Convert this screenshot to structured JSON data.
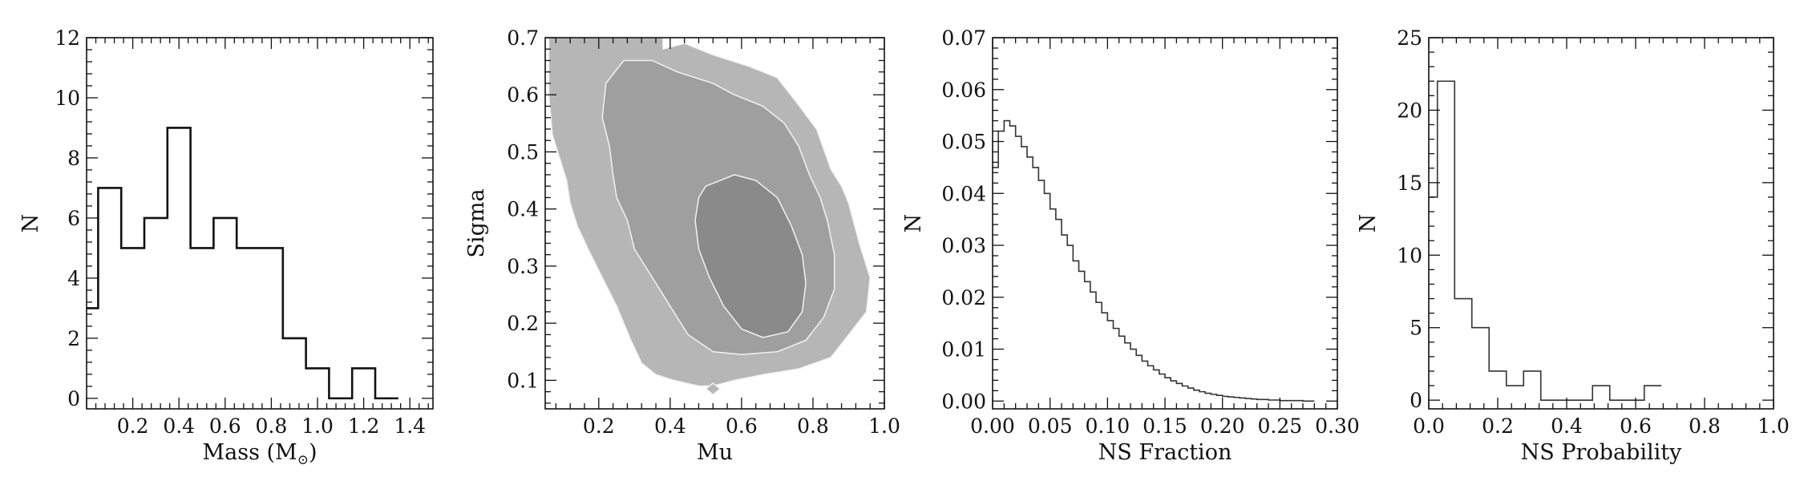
{
  "chart_data": [
    {
      "type": "histogram",
      "xlabel": "Mass (M",
      "xlabel_subscript": "⊙",
      "xlabel_close": ")",
      "ylabel": "N",
      "xlim": [
        0.0,
        1.5
      ],
      "ylim": [
        -0.35,
        12
      ],
      "xticks": [
        "0.2",
        "0.4",
        "0.6",
        "0.8",
        "1.0",
        "1.2",
        "1.4"
      ],
      "xtick_values": [
        0.2,
        0.4,
        0.6,
        0.8,
        1.0,
        1.2,
        1.4
      ],
      "yticks": [
        "0",
        "2",
        "4",
        "6",
        "8",
        "10",
        "12"
      ],
      "ytick_values": [
        0,
        2,
        4,
        6,
        8,
        10,
        12
      ],
      "bin_edges": [
        0.0,
        0.05,
        0.15,
        0.25,
        0.35,
        0.45,
        0.55,
        0.65,
        0.75,
        0.85,
        0.95,
        1.05,
        1.15,
        1.25,
        1.35
      ],
      "counts": [
        3,
        7,
        5,
        6,
        9,
        5,
        6,
        5,
        5,
        2,
        1,
        0,
        1,
        0
      ],
      "stroke": "#111111"
    },
    {
      "type": "contour",
      "xlabel": "Mu",
      "ylabel": "Sigma",
      "xlim": [
        0.05,
        1.0
      ],
      "ylim": [
        0.05,
        0.7
      ],
      "xticks": [
        "0.2",
        "0.4",
        "0.6",
        "0.8",
        "1.0"
      ],
      "xtick_values": [
        0.2,
        0.4,
        0.6,
        0.8,
        1.0
      ],
      "yticks": [
        "0.1",
        "0.2",
        "0.3",
        "0.4",
        "0.5",
        "0.6",
        "0.7"
      ],
      "ytick_values": [
        0.1,
        0.2,
        0.3,
        0.4,
        0.5,
        0.6,
        0.7
      ],
      "levels": [
        {
          "fill": "#b6b6b6",
          "points": [
            [
              0.06,
              0.7
            ],
            [
              0.38,
              0.7
            ],
            [
              0.38,
              0.68
            ],
            [
              0.44,
              0.69
            ],
            [
              0.52,
              0.67
            ],
            [
              0.62,
              0.65
            ],
            [
              0.7,
              0.63
            ],
            [
              0.75,
              0.59
            ],
            [
              0.81,
              0.54
            ],
            [
              0.85,
              0.47
            ],
            [
              0.88,
              0.44
            ],
            [
              0.9,
              0.41
            ],
            [
              0.93,
              0.34
            ],
            [
              0.96,
              0.28
            ],
            [
              0.95,
              0.22
            ],
            [
              0.9,
              0.18
            ],
            [
              0.85,
              0.14
            ],
            [
              0.76,
              0.12
            ],
            [
              0.66,
              0.11
            ],
            [
              0.58,
              0.1
            ],
            [
              0.52,
              0.09
            ],
            [
              0.48,
              0.09
            ],
            [
              0.41,
              0.1
            ],
            [
              0.36,
              0.11
            ],
            [
              0.32,
              0.13
            ],
            [
              0.29,
              0.17
            ],
            [
              0.25,
              0.23
            ],
            [
              0.21,
              0.28
            ],
            [
              0.17,
              0.33
            ],
            [
              0.14,
              0.37
            ],
            [
              0.12,
              0.41
            ],
            [
              0.11,
              0.45
            ],
            [
              0.09,
              0.49
            ],
            [
              0.07,
              0.53
            ],
            [
              0.06,
              0.6
            ]
          ]
        },
        {
          "fill": "#b6b6b6",
          "points": [
            [
              0.5,
              0.085
            ],
            [
              0.52,
              0.075
            ],
            [
              0.54,
              0.085
            ],
            [
              0.52,
              0.095
            ]
          ]
        },
        {
          "fill": "#9f9f9f",
          "points": [
            [
              0.22,
              0.62
            ],
            [
              0.27,
              0.66
            ],
            [
              0.35,
              0.66
            ],
            [
              0.42,
              0.64
            ],
            [
              0.52,
              0.62
            ],
            [
              0.58,
              0.6
            ],
            [
              0.66,
              0.58
            ],
            [
              0.72,
              0.55
            ],
            [
              0.76,
              0.51
            ],
            [
              0.79,
              0.46
            ],
            [
              0.82,
              0.42
            ],
            [
              0.84,
              0.38
            ],
            [
              0.86,
              0.32
            ],
            [
              0.86,
              0.26
            ],
            [
              0.83,
              0.21
            ],
            [
              0.78,
              0.17
            ],
            [
              0.7,
              0.15
            ],
            [
              0.6,
              0.145
            ],
            [
              0.52,
              0.15
            ],
            [
              0.45,
              0.18
            ],
            [
              0.4,
              0.23
            ],
            [
              0.35,
              0.28
            ],
            [
              0.3,
              0.33
            ],
            [
              0.28,
              0.38
            ],
            [
              0.25,
              0.42
            ],
            [
              0.24,
              0.46
            ],
            [
              0.23,
              0.51
            ],
            [
              0.21,
              0.56
            ]
          ]
        },
        {
          "fill": "#8a8a8a",
          "points": [
            [
              0.48,
              0.42
            ],
            [
              0.5,
              0.44
            ],
            [
              0.58,
              0.46
            ],
            [
              0.64,
              0.45
            ],
            [
              0.7,
              0.42
            ],
            [
              0.74,
              0.37
            ],
            [
              0.77,
              0.32
            ],
            [
              0.78,
              0.27
            ],
            [
              0.77,
              0.22
            ],
            [
              0.73,
              0.185
            ],
            [
              0.66,
              0.175
            ],
            [
              0.6,
              0.19
            ],
            [
              0.55,
              0.23
            ],
            [
              0.51,
              0.28
            ],
            [
              0.48,
              0.33
            ],
            [
              0.47,
              0.38
            ]
          ]
        }
      ]
    },
    {
      "type": "histogram",
      "xlabel": "NS Fraction",
      "ylabel": "N",
      "xlim": [
        0.0,
        0.3
      ],
      "ylim": [
        -0.0015,
        0.07
      ],
      "xticks": [
        "0.00",
        "0.05",
        "0.10",
        "0.15",
        "0.20",
        "0.25",
        "0.30"
      ],
      "xtick_values": [
        0.0,
        0.05,
        0.1,
        0.15,
        0.2,
        0.25,
        0.3
      ],
      "yticks": [
        "0.00",
        "0.01",
        "0.02",
        "0.03",
        "0.04",
        "0.05",
        "0.06",
        "0.07"
      ],
      "ytick_values": [
        0.0,
        0.01,
        0.02,
        0.03,
        0.04,
        0.05,
        0.06,
        0.07
      ],
      "bin_edges": [
        0.0,
        0.005,
        0.01,
        0.015,
        0.02,
        0.025,
        0.03,
        0.035,
        0.04,
        0.045,
        0.05,
        0.055,
        0.06,
        0.065,
        0.07,
        0.075,
        0.08,
        0.085,
        0.09,
        0.095,
        0.1,
        0.105,
        0.11,
        0.115,
        0.12,
        0.125,
        0.13,
        0.135,
        0.14,
        0.145,
        0.15,
        0.155,
        0.16,
        0.165,
        0.17,
        0.175,
        0.18,
        0.185,
        0.19,
        0.195,
        0.2,
        0.205,
        0.21,
        0.215,
        0.22,
        0.225,
        0.23,
        0.235,
        0.24,
        0.245,
        0.25,
        0.255,
        0.26,
        0.265,
        0.27,
        0.275,
        0.28
      ],
      "counts": [
        0.045,
        0.052,
        0.054,
        0.053,
        0.051,
        0.049,
        0.047,
        0.045,
        0.0425,
        0.04,
        0.037,
        0.035,
        0.032,
        0.03,
        0.027,
        0.025,
        0.023,
        0.021,
        0.019,
        0.017,
        0.0155,
        0.014,
        0.0125,
        0.0112,
        0.01,
        0.0088,
        0.0077,
        0.0068,
        0.006,
        0.0052,
        0.0045,
        0.0039,
        0.0034,
        0.0029,
        0.0025,
        0.0021,
        0.0018,
        0.0015,
        0.0013,
        0.0011,
        0.0009,
        0.0008,
        0.0007,
        0.0006,
        0.0005,
        0.0004,
        0.0003,
        0.0003,
        0.0002,
        0.0002,
        0.0001,
        0.0001,
        0.0001,
        0.0001,
        0.0,
        0.0
      ],
      "stroke": "#333333"
    },
    {
      "type": "histogram",
      "xlabel": "NS Probability",
      "ylabel": "N",
      "xlim": [
        0.0,
        1.0
      ],
      "ylim": [
        -0.6,
        25
      ],
      "xticks": [
        "0.0",
        "0.2",
        "0.4",
        "0.6",
        "0.8",
        "1.0"
      ],
      "xtick_values": [
        0.0,
        0.2,
        0.4,
        0.6,
        0.8,
        1.0
      ],
      "yticks": [
        "0",
        "5",
        "10",
        "15",
        "20",
        "25"
      ],
      "ytick_values": [
        0,
        5,
        10,
        15,
        20,
        25
      ],
      "bin_edges": [
        0.0,
        0.025,
        0.075,
        0.125,
        0.175,
        0.225,
        0.275,
        0.325,
        0.375,
        0.425,
        0.475,
        0.525,
        0.575,
        0.625,
        0.675
      ],
      "counts": [
        14,
        22,
        7,
        5,
        2,
        1,
        2,
        0,
        0,
        0,
        1,
        0,
        0,
        1
      ],
      "stroke": "#333333"
    }
  ]
}
